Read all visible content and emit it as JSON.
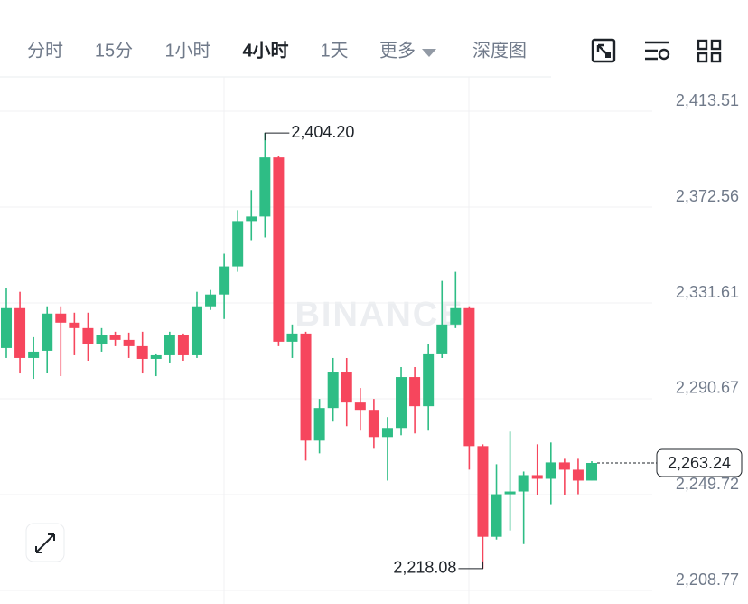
{
  "tabs": [
    "分时",
    "15分",
    "1小时",
    "4小时",
    "1天",
    "更多",
    "深度图"
  ],
  "active_tab": "4小时",
  "chart_data": {
    "type": "candlestick",
    "watermark": "BINANCE",
    "up_color": "#2ebd85",
    "down_color": "#f6465d",
    "grid": true,
    "ylim": [
      2202.98,
      2428.19
    ],
    "yticks": [
      {
        "value": 2413.51,
        "label": "2,413.51"
      },
      {
        "value": 2372.56,
        "label": "2,372.56"
      },
      {
        "value": 2331.61,
        "label": "2,331.61"
      },
      {
        "value": 2290.67,
        "label": "2,290.67"
      },
      {
        "value": 2249.72,
        "label": "2,249.72"
      },
      {
        "value": 2208.77,
        "label": "2,208.77"
      }
    ],
    "open": [
      2312.33,
      2329.39,
      2308.07,
      2311.17,
      2327.07,
      2323.19,
      2320.86,
      2313.88,
      2317.76,
      2315.82,
      2313.11,
      2307.68,
      2309.23,
      2317.76,
      2309.23,
      2330.17,
      2335.21,
      2347.23,
      2366.62,
      2368.55,
      2393.76,
      2315.05,
      2318.53,
      2272.78,
      2286.74,
      2302.25,
      2289.07,
      2285.96,
      2274.33,
      2278.21,
      2299.92,
      2287.52,
      2310.01,
      2322.41,
      2329.39,
      2270.45,
      2231.68,
      2249.9,
      2251.06,
      2258.04,
      2256.49,
      2263.47,
      2260.37,
      2255.72
    ],
    "high": [
      2337.92,
      2336.37,
      2316.98,
      2330.17,
      2330.17,
      2327.45,
      2327.45,
      2320.86,
      2319.31,
      2318.92,
      2319.31,
      2310.01,
      2319.31,
      2318.53,
      2336.37,
      2337.15,
      2352.66,
      2371.27,
      2379.8,
      2404.2,
      2394.53,
      2322.41,
      2319.31,
      2290.62,
      2308.07,
      2308.07,
      2295.27,
      2290.62,
      2282.86,
      2304.19,
      2304.19,
      2313.88,
      2341.02,
      2344.9,
      2330.17,
      2271.23,
      2262.7,
      2276.66,
      2259.59,
      2271.23,
      2272.0,
      2265.02,
      2265.02,
      2264.0
    ],
    "low": [
      2308.07,
      2301.47,
      2299.15,
      2301.47,
      2300.31,
      2309.23,
      2306.9,
      2310.78,
      2313.11,
      2308.07,
      2301.47,
      2300.31,
      2306.13,
      2306.9,
      2308.07,
      2328.62,
      2324.74,
      2344.9,
      2358.47,
      2359.63,
      2313.11,
      2308.07,
      2264.25,
      2267.35,
      2280.92,
      2278.98,
      2277.05,
      2269.29,
      2255.72,
      2275.1,
      2275.88,
      2277.05,
      2308.07,
      2320.86,
      2260.37,
      2218.08,
      2230.51,
      2234.39,
      2228.57,
      2249.51,
      2245.64,
      2249.51,
      2249.9,
      2255.72
    ],
    "close": [
      2329.39,
      2308.07,
      2310.78,
      2327.07,
      2323.19,
      2320.86,
      2313.88,
      2317.76,
      2315.82,
      2313.11,
      2307.68,
      2309.23,
      2317.76,
      2309.23,
      2330.17,
      2335.21,
      2347.23,
      2366.62,
      2368.55,
      2393.76,
      2315.05,
      2318.53,
      2272.78,
      2286.74,
      2302.25,
      2289.07,
      2285.96,
      2274.33,
      2278.21,
      2299.92,
      2287.52,
      2310.01,
      2322.41,
      2329.39,
      2270.45,
      2231.68,
      2249.9,
      2251.06,
      2258.04,
      2256.49,
      2263.47,
      2260.37,
      2255.72,
      2263.24
    ],
    "annotations": {
      "high": {
        "value": 2404.2,
        "label": "2,404.20"
      },
      "low": {
        "value": 2218.08,
        "label": "2,218.08"
      },
      "last": {
        "value": 2263.24,
        "label": "2,263.24"
      }
    }
  }
}
